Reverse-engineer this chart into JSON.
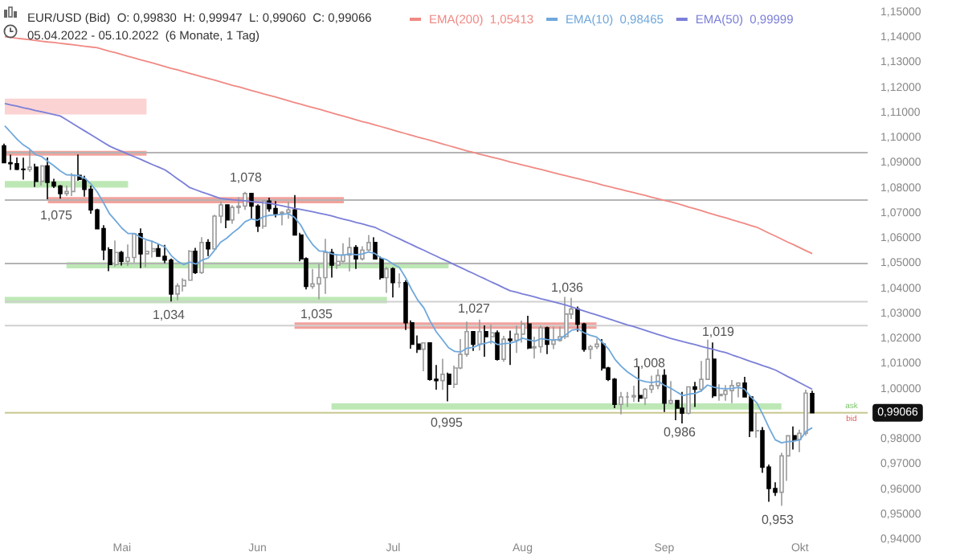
{
  "chart_data": {
    "type": "candlestick",
    "title": "EUR/USD (Bid)  O: 0,99830  H: 0,99947  L: 0,99060  C: 0,99066",
    "subtitle": "05.04.2022 - 05.10.2022  (6 Monate, 1 Tag)",
    "categories": [
      null,
      null,
      null,
      null,
      null,
      null,
      null,
      null,
      null,
      null,
      null,
      null,
      null,
      null,
      null,
      null,
      null,
      null,
      null,
      "Mai",
      null,
      null,
      null,
      null,
      null,
      null,
      null,
      null,
      null,
      null,
      null,
      null,
      null,
      null,
      null,
      null,
      null,
      null,
      null,
      null,
      null,
      "Jun",
      null,
      null,
      null,
      null,
      null,
      null,
      null,
      null,
      null,
      null,
      null,
      null,
      null,
      null,
      null,
      null,
      null,
      null,
      null,
      null,
      null,
      "Jul",
      null,
      null,
      null,
      null,
      null,
      null,
      null,
      null,
      null,
      null,
      null,
      null,
      null,
      null,
      null,
      null,
      null,
      null,
      null,
      null,
      "Aug",
      null,
      null,
      null,
      null,
      null,
      null,
      null,
      null,
      null,
      null,
      null,
      null,
      null,
      null,
      null,
      null,
      null,
      null,
      null,
      null,
      null,
      null,
      "Sep",
      null,
      null,
      null,
      null,
      null,
      null,
      null,
      null,
      null,
      null,
      null,
      null,
      null,
      null,
      null,
      null,
      null,
      null,
      null,
      null,
      null,
      "Okt",
      null,
      null
    ],
    "ohlc": [
      [
        1.097,
        1.0979,
        1.0901,
        1.0903
      ],
      [
        1.0903,
        1.0935,
        1.0874,
        1.0899
      ],
      [
        1.0899,
        1.0924,
        1.0873,
        1.0877
      ],
      [
        1.0877,
        1.0923,
        1.0836,
        1.0876
      ],
      [
        1.0876,
        1.0953,
        1.0866,
        1.0885
      ],
      [
        1.0885,
        1.0899,
        1.0806,
        1.0829
      ],
      [
        1.0829,
        1.0893,
        1.0812,
        1.089
      ],
      [
        1.089,
        1.0924,
        1.0757,
        1.0825
      ],
      [
        1.0825,
        1.0839,
        1.0802,
        1.081
      ],
      [
        1.081,
        1.0814,
        1.076,
        1.078
      ],
      [
        1.078,
        1.0812,
        1.077,
        1.0788
      ],
      [
        1.0788,
        1.0862,
        1.077,
        1.0852
      ],
      [
        1.0852,
        1.0936,
        1.0831,
        1.0837
      ],
      [
        1.0837,
        1.0851,
        1.0768,
        1.0797
      ],
      [
        1.0797,
        1.0812,
        1.07,
        1.0715
      ],
      [
        1.0715,
        1.072,
        1.0637,
        1.064
      ],
      [
        1.064,
        1.0654,
        1.0515,
        1.0556
      ],
      [
        1.0556,
        1.0566,
        1.0471,
        1.0497
      ],
      [
        1.0497,
        1.0593,
        1.0489,
        1.0545
      ],
      [
        1.0545,
        1.0552,
        1.0493,
        1.051
      ],
      [
        1.051,
        1.0577,
        1.0492,
        1.0525
      ],
      [
        1.0525,
        1.0623,
        1.0505,
        1.062
      ],
      [
        1.062,
        1.0641,
        1.0483,
        1.054
      ],
      [
        1.054,
        1.0593,
        1.0487,
        1.055
      ],
      [
        1.055,
        1.0593,
        1.0525,
        1.056
      ],
      [
        1.056,
        1.0578,
        1.0529,
        1.053
      ],
      [
        1.053,
        1.0576,
        1.0503,
        1.0515
      ],
      [
        1.0515,
        1.0521,
        1.035,
        1.038
      ],
      [
        1.038,
        1.0423,
        1.0355,
        1.0412
      ],
      [
        1.0412,
        1.0443,
        1.039,
        1.0435
      ],
      [
        1.0435,
        1.0555,
        1.0433,
        1.055
      ],
      [
        1.055,
        1.0564,
        1.046,
        1.0465
      ],
      [
        1.0465,
        1.0606,
        1.046,
        1.0585
      ],
      [
        1.0585,
        1.0598,
        1.0531,
        1.056
      ],
      [
        1.056,
        1.0696,
        1.0556,
        1.069
      ],
      [
        1.069,
        1.0748,
        1.0662,
        1.0735
      ],
      [
        1.0735,
        1.0737,
        1.0642,
        1.0675
      ],
      [
        1.0675,
        1.0734,
        1.066,
        1.0725
      ],
      [
        1.0725,
        1.0765,
        1.07,
        1.073
      ],
      [
        1.073,
        1.0787,
        1.0715,
        1.078
      ],
      [
        1.078,
        1.0781,
        1.068,
        1.073
      ],
      [
        1.073,
        1.0737,
        1.0627,
        1.065
      ],
      [
        1.065,
        1.075,
        1.064,
        1.075
      ],
      [
        1.075,
        1.0764,
        1.0708,
        1.072
      ],
      [
        1.072,
        1.075,
        1.0685,
        1.07
      ],
      [
        1.07,
        1.071,
        1.0653,
        1.0705
      ],
      [
        1.0705,
        1.0748,
        1.068,
        1.0715
      ],
      [
        1.0715,
        1.0774,
        1.0615,
        1.0615
      ],
      [
        1.0615,
        1.0624,
        1.051,
        1.052
      ],
      [
        1.052,
        1.0526,
        1.0398,
        1.041
      ],
      [
        1.041,
        1.048,
        1.04,
        1.042
      ],
      [
        1.042,
        1.05,
        1.0359,
        1.0445
      ],
      [
        1.0445,
        1.06,
        1.038,
        1.0545
      ],
      [
        1.0545,
        1.056,
        1.0445,
        1.0495
      ],
      [
        1.0495,
        1.054,
        1.048,
        1.051
      ],
      [
        1.051,
        1.0582,
        1.0505,
        1.0535
      ],
      [
        1.0535,
        1.0605,
        1.047,
        1.0565
      ],
      [
        1.0565,
        1.0575,
        1.048,
        1.052
      ],
      [
        1.052,
        1.057,
        1.0513,
        1.0555
      ],
      [
        1.0555,
        1.0615,
        1.055,
        1.0585
      ],
      [
        1.0585,
        1.0606,
        1.052,
        1.052
      ],
      [
        1.052,
        1.053,
        1.0437,
        1.0445
      ],
      [
        1.0445,
        1.0488,
        1.0384,
        1.048
      ],
      [
        1.048,
        1.0486,
        1.0366,
        1.0425
      ],
      [
        1.0425,
        1.0462,
        1.0405,
        1.0425
      ],
      [
        1.0425,
        1.0435,
        1.0236,
        1.0265
      ],
      [
        1.0265,
        1.0275,
        1.0162,
        1.018
      ],
      [
        1.018,
        1.0215,
        1.0145,
        1.016
      ],
      [
        1.016,
        1.0187,
        1.0072,
        1.0185
      ],
      [
        1.0185,
        1.0186,
        1.0035,
        1.004
      ],
      [
        1.004,
        1.0097,
        0.9999,
        1.0035
      ],
      [
        1.0035,
        1.0122,
        0.9998,
        1.006
      ],
      [
        1.006,
        1.0067,
        0.9952,
        1.002
      ],
      [
        1.002,
        1.0095,
        1.0005,
        1.0085
      ],
      [
        1.0085,
        1.02,
        1.008,
        1.014
      ],
      [
        1.014,
        1.027,
        1.013,
        1.023
      ],
      [
        1.023,
        1.023,
        1.0153,
        1.018
      ],
      [
        1.018,
        1.0278,
        1.0155,
        1.023
      ],
      [
        1.023,
        1.0255,
        1.013,
        1.021
      ],
      [
        1.021,
        1.0258,
        1.018,
        1.0225
      ],
      [
        1.0225,
        1.0235,
        1.0115,
        1.012
      ],
      [
        1.012,
        1.0213,
        1.011,
        1.02
      ],
      [
        1.02,
        1.0234,
        1.0097,
        1.0195
      ],
      [
        1.0195,
        1.0254,
        1.0145,
        1.022
      ],
      [
        1.022,
        1.0274,
        1.0186,
        1.026
      ],
      [
        1.026,
        1.0293,
        1.016,
        1.0165
      ],
      [
        1.0165,
        1.021,
        1.0123,
        1.017
      ],
      [
        1.017,
        1.0254,
        1.0145,
        1.0245
      ],
      [
        1.0245,
        1.025,
        1.014,
        1.018
      ],
      [
        1.018,
        1.025,
        1.016,
        1.0195
      ],
      [
        1.0195,
        1.025,
        1.019,
        1.021
      ],
      [
        1.021,
        1.0368,
        1.02,
        1.03
      ],
      [
        1.03,
        1.0364,
        1.028,
        1.032
      ],
      [
        1.032,
        1.033,
        1.023,
        1.026
      ],
      [
        1.026,
        1.0265,
        1.015,
        1.016
      ],
      [
        1.016,
        1.0177,
        1.012,
        1.017
      ],
      [
        1.017,
        1.0202,
        1.016,
        1.018
      ],
      [
        1.018,
        1.02,
        1.0075,
        1.0085
      ],
      [
        1.0085,
        1.009,
        1.0033,
        1.004
      ],
      [
        1.004,
        1.0045,
        0.9925,
        0.994
      ],
      [
        0.994,
        0.999,
        0.99,
        0.997
      ],
      [
        0.997,
        0.999,
        0.993,
        0.997
      ],
      [
        0.997,
        1.0015,
        0.995,
        0.9975
      ],
      [
        0.9975,
        1.009,
        0.995,
        0.9965
      ],
      [
        0.9965,
        1.0005,
        0.9938,
        1.0
      ],
      [
        1.0,
        1.0055,
        0.9985,
        1.0015
      ],
      [
        1.0015,
        1.008,
        1.0,
        1.0055
      ],
      [
        1.0055,
        1.008,
        0.991,
        0.9945
      ],
      [
        0.9945,
        1.0033,
        0.994,
        0.9955
      ],
      [
        0.9955,
        0.9958,
        0.9877,
        0.9925
      ],
      [
        0.9925,
        0.999,
        0.9864,
        0.9905
      ],
      [
        0.9905,
        1.001,
        0.99,
        1.001
      ],
      [
        1.001,
        1.003,
        0.993,
        1.0
      ],
      [
        1.0,
        1.0113,
        0.999,
        1.004
      ],
      [
        1.004,
        1.0198,
        1.004,
        1.012
      ],
      [
        1.012,
        1.0187,
        0.9966,
        0.9975
      ],
      [
        0.9975,
        1.002,
        0.9955,
        0.998
      ],
      [
        0.998,
        1.0017,
        0.9955,
        0.9995
      ],
      [
        0.9995,
        1.0037,
        0.9945,
        1.0015
      ],
      [
        1.0015,
        1.0028,
        0.9968,
        1.0025
      ],
      [
        1.0025,
        1.005,
        0.997,
        0.997
      ],
      [
        0.997,
        0.9976,
        0.981,
        0.9835
      ],
      [
        0.9835,
        0.9907,
        0.9807,
        0.9835
      ],
      [
        0.9835,
        0.985,
        0.9667,
        0.969
      ],
      [
        0.969,
        0.97,
        0.9552,
        0.9605
      ],
      [
        0.9605,
        0.963,
        0.9575,
        0.959
      ],
      [
        0.959,
        0.9747,
        0.9536,
        0.9735
      ],
      [
        0.9735,
        0.9815,
        0.9635,
        0.9815
      ],
      [
        0.9815,
        0.9852,
        0.976,
        0.98
      ],
      [
        0.98,
        0.9839,
        0.975,
        0.9825
      ],
      [
        0.9825,
        0.9999,
        0.9815,
        0.9985
      ],
      [
        0.9983,
        0.99947,
        0.9906,
        0.99066
      ]
    ],
    "series": [
      {
        "type": "line",
        "name": "EMA(200)  1,05413",
        "color": "#f08a84",
        "values": [
          1.1405,
          1.1402,
          1.1399,
          1.1396,
          1.1393,
          1.139,
          1.1387,
          1.1384,
          1.1382,
          1.1379,
          1.1376,
          1.1373,
          1.137,
          1.1367,
          1.1364,
          1.1361,
          1.1354,
          1.1347,
          1.1341,
          1.1334,
          1.1327,
          1.132,
          1.1313,
          1.1307,
          1.13,
          1.1293,
          1.1286,
          1.1279,
          1.1273,
          1.1266,
          1.1259,
          1.1252,
          1.1245,
          1.1239,
          1.1232,
          1.1225,
          1.1218,
          1.1211,
          1.1205,
          1.1198,
          1.1191,
          1.1184,
          1.1177,
          1.1171,
          1.1164,
          1.1157,
          1.115,
          1.1143,
          1.1136,
          1.1129,
          1.1123,
          1.1116,
          1.1109,
          1.1102,
          1.1095,
          1.1088,
          1.1081,
          1.1074,
          1.1067,
          1.1061,
          1.1054,
          1.1047,
          1.104,
          1.1033,
          1.1026,
          1.1019,
          1.1012,
          1.1005,
          1.0999,
          1.0992,
          1.0985,
          1.0978,
          1.0971,
          1.0964,
          1.0957,
          1.095,
          1.0944,
          1.0937,
          1.0931,
          1.0925,
          1.0919,
          1.0913,
          1.0906,
          1.09,
          1.0894,
          1.0888,
          1.0882,
          1.0876,
          1.087,
          1.0863,
          1.0857,
          1.0851,
          1.0845,
          1.0839,
          1.0833,
          1.0827,
          1.0821,
          1.0814,
          1.0808,
          1.0802,
          1.0796,
          1.079,
          1.0784,
          1.0778,
          1.0772,
          1.0765,
          1.0759,
          1.0753,
          1.0747,
          1.0741,
          1.0734,
          1.0726,
          1.0719,
          1.0712,
          1.0704,
          1.0697,
          1.069,
          1.0683,
          1.0675,
          1.0668,
          1.0661,
          1.0653,
          1.0646,
          1.0634,
          1.0622,
          1.0611,
          1.0599,
          1.0587,
          1.0576,
          1.0564,
          1.0552,
          1.0541
        ]
      },
      {
        "type": "line",
        "name": "EMA(10)  0,98465",
        "color": "#6fa8dc",
        "values": [
          1.105,
          1.1023,
          1.0996,
          1.0974,
          1.0958,
          1.0935,
          1.0927,
          1.0908,
          1.089,
          1.087,
          1.0855,
          1.0854,
          1.0851,
          1.0841,
          1.0818,
          1.0786,
          1.0744,
          1.0699,
          1.0671,
          1.0642,
          1.0621,
          1.0621,
          1.0606,
          1.0596,
          1.0589,
          1.0578,
          1.0567,
          1.0533,
          1.0511,
          1.0497,
          1.0507,
          1.0499,
          1.0515,
          1.0523,
          1.0553,
          1.0586,
          1.0602,
          1.0624,
          1.0643,
          1.0668,
          1.0679,
          1.0674,
          1.0688,
          1.0694,
          1.0695,
          1.0697,
          1.07,
          1.0685,
          1.0655,
          1.061,
          1.0575,
          1.0551,
          1.055,
          1.054,
          1.0535,
          1.0535,
          1.054,
          1.0536,
          1.0539,
          1.0547,
          1.0542,
          1.0524,
          1.0516,
          1.0499,
          1.0486,
          1.0446,
          1.0398,
          1.0355,
          1.0324,
          1.0272,
          1.0229,
          1.0198,
          1.0166,
          1.0151,
          1.0149,
          1.0164,
          1.0167,
          1.0178,
          1.0184,
          1.0191,
          1.0178,
          1.0182,
          1.0184,
          1.0191,
          1.0204,
          1.0197,
          1.0192,
          1.0202,
          1.0198,
          1.0197,
          1.0199,
          1.0217,
          1.0236,
          1.024,
          1.0225,
          1.0215,
          1.0209,
          1.0186,
          1.0159,
          1.0119,
          1.0092,
          1.007,
          1.0053,
          1.0037,
          1.003,
          1.0027,
          1.0032,
          1.0016,
          1.0005,
          0.999,
          0.9975,
          0.9981,
          0.9984,
          0.9994,
          1.0017,
          1.0009,
          1.0004,
          1.0002,
          1.0004,
          1.0008,
          1.0001,
          0.9971,
          0.9946,
          0.9899,
          0.9846,
          0.9799,
          0.9787,
          0.9792,
          0.9793,
          0.9799,
          0.9833,
          0.9847
        ]
      },
      {
        "type": "line",
        "name": "EMA(50)  0,99999",
        "color": "#7b7fd8",
        "values": [
          1.1139,
          1.1133,
          1.1128,
          1.1122,
          1.1117,
          1.1111,
          1.1106,
          1.11,
          1.1095,
          1.1089,
          1.1074,
          1.1059,
          1.1044,
          1.1029,
          1.1014,
          1.0999,
          1.0984,
          1.0969,
          1.0958,
          1.0948,
          1.0937,
          1.0927,
          1.0917,
          1.0906,
          1.0895,
          1.0885,
          1.0874,
          1.0857,
          1.0839,
          1.0822,
          1.0804,
          1.0795,
          1.0786,
          1.0778,
          1.0769,
          1.076,
          1.0758,
          1.0755,
          1.0753,
          1.0751,
          1.0748,
          1.0746,
          1.0743,
          1.0741,
          1.0736,
          1.0731,
          1.0726,
          1.0721,
          1.0717,
          1.0712,
          1.0707,
          1.0702,
          1.0697,
          1.0691,
          1.0684,
          1.0678,
          1.0672,
          1.0665,
          1.0659,
          1.0652,
          1.0646,
          1.0634,
          1.0623,
          1.0611,
          1.06,
          1.0588,
          1.0577,
          1.0565,
          1.0554,
          1.0542,
          1.0531,
          1.0519,
          1.0508,
          1.0496,
          1.0485,
          1.0473,
          1.0462,
          1.045,
          1.0439,
          1.0427,
          1.0416,
          1.0404,
          1.0393,
          1.0387,
          1.038,
          1.0374,
          1.0368,
          1.0361,
          1.0355,
          1.0349,
          1.0342,
          1.0336,
          1.0328,
          1.032,
          1.0312,
          1.0304,
          1.0297,
          1.0289,
          1.0281,
          1.0273,
          1.0265,
          1.0257,
          1.025,
          1.0242,
          1.0234,
          1.0226,
          1.0218,
          1.0211,
          1.0203,
          1.0197,
          1.019,
          1.0184,
          1.0178,
          1.0171,
          1.0165,
          1.0159,
          1.0152,
          1.0146,
          1.0137,
          1.0129,
          1.012,
          1.0111,
          1.0103,
          1.0094,
          1.0086,
          1.0077,
          1.0064,
          1.0051,
          1.0039,
          1.0026,
          1.0013,
          1.0
        ]
      }
    ],
    "ylim": [
      0.94,
      1.15
    ],
    "yticks": [
      {
        "value": 0.94,
        "label": "0,94000"
      },
      {
        "value": 0.95,
        "label": "0,95000"
      },
      {
        "value": 0.96,
        "label": "0,96000"
      },
      {
        "value": 0.97,
        "label": "0,97000"
      },
      {
        "value": 0.98,
        "label": "0,98000"
      },
      {
        "value": 0.99,
        "label": null
      },
      {
        "value": 1.0,
        "label": "1,00000"
      },
      {
        "value": 1.01,
        "label": "1,01000"
      },
      {
        "value": 1.02,
        "label": "1,02000"
      },
      {
        "value": 1.03,
        "label": "1,03000"
      },
      {
        "value": 1.04,
        "label": "1,04000"
      },
      {
        "value": 1.05,
        "label": "1,05000"
      },
      {
        "value": 1.06,
        "label": "1,06000"
      },
      {
        "value": 1.07,
        "label": "1,07000"
      },
      {
        "value": 1.08,
        "label": "1,08000"
      },
      {
        "value": 1.09,
        "label": "1,09000"
      },
      {
        "value": 1.1,
        "label": "1,10000"
      },
      {
        "value": 1.11,
        "label": "1,11000"
      },
      {
        "value": 1.12,
        "label": "1,12000"
      },
      {
        "value": 1.13,
        "label": "1,13000"
      },
      {
        "value": 1.14,
        "label": "1,14000"
      },
      {
        "value": 1.15,
        "label": "1,15000"
      }
    ],
    "ref_lines": [
      {
        "axis": "y",
        "value": 1.0943,
        "color": "#b4b4b4"
      },
      {
        "axis": "y",
        "value": 1.0754,
        "color": "#b4b4b4"
      },
      {
        "axis": "y",
        "value": 1.0501,
        "color": "#b4b4b4"
      },
      {
        "axis": "y",
        "value": 1.0349,
        "color": "#d0d0d0"
      },
      {
        "axis": "y",
        "value": 1.0254,
        "color": "#d0d0d0"
      },
      {
        "axis": "y",
        "value": 0.99066,
        "label": "0,99066",
        "color": "#c8c890"
      }
    ],
    "bands": [
      {
        "axis": "y",
        "from": 1.1095,
        "to": 1.1158,
        "color": "#fbd3d3"
      },
      {
        "axis": "y",
        "from": 1.0931,
        "to": 1.095,
        "color": "#f2a29c"
      },
      {
        "axis": "y",
        "from": 1.0804,
        "to": 1.083,
        "color": "#bde8b5"
      },
      {
        "axis": "y",
        "from": 1.0741,
        "to": 1.0766,
        "color": "#f2a29c"
      },
      {
        "axis": "y",
        "from": 1.0482,
        "to": 1.0507,
        "color": "#bde8b5"
      },
      {
        "axis": "y",
        "from": 1.0343,
        "to": 1.0368,
        "color": "#bde8b5"
      },
      {
        "axis": "y",
        "from": 1.0241,
        "to": 1.0267,
        "color": "#f2a29c"
      },
      {
        "axis": "y",
        "from": 0.9919,
        "to": 0.9944,
        "color": "#bde8b5"
      }
    ],
    "annotations": [
      {
        "text": "1,075",
        "y": 1.075
      },
      {
        "text": "1,078",
        "y": 1.078
      },
      {
        "text": "1,034",
        "y": 1.034
      },
      {
        "text": "1,035",
        "y": 1.035
      },
      {
        "text": "1,027",
        "y": 1.027
      },
      {
        "text": "1,036",
        "y": 1.036
      },
      {
        "text": "1,008",
        "y": 1.008
      },
      {
        "text": "1,019",
        "y": 1.019
      },
      {
        "text": "0,995",
        "y": 0.995
      },
      {
        "text": "0,986",
        "y": 0.986
      },
      {
        "text": "0,953",
        "y": 0.953
      },
      "ask",
      "bid"
    ],
    "legend": "top",
    "grid": false
  }
}
